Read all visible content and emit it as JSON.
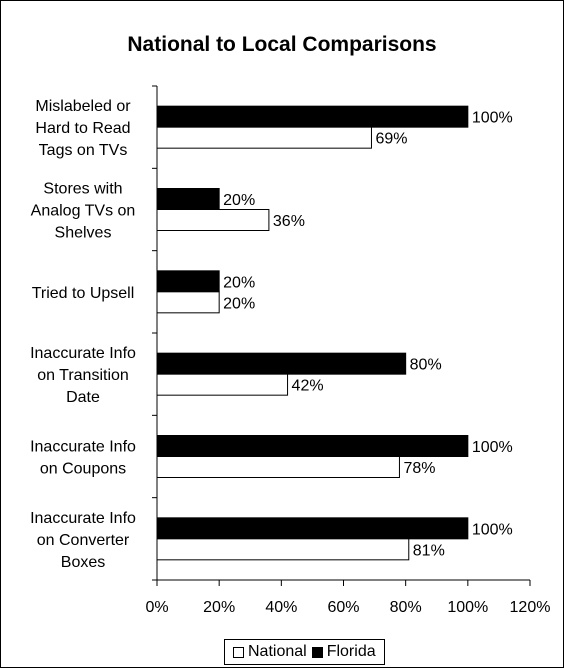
{
  "chart_data": {
    "type": "bar",
    "orientation": "horizontal",
    "title": "National to Local Comparisons",
    "xlabel": "",
    "ylabel": "",
    "categories": [
      [
        "Mislabeled or",
        "Hard to Read",
        "Tags on TVs"
      ],
      [
        "Stores with",
        "Analog TVs on",
        "Shelves"
      ],
      [
        "Tried to Upsell"
      ],
      [
        "Inaccurate Info",
        "on Transition",
        "Date"
      ],
      [
        "Inaccurate Info",
        "on Coupons"
      ],
      [
        "Inaccurate Info",
        "on Converter",
        "Boxes"
      ]
    ],
    "series": [
      {
        "name": "Florida",
        "color": "#000000",
        "values": [
          100,
          20,
          20,
          80,
          100,
          100
        ],
        "data_labels": [
          "100%",
          "20%",
          "20%",
          "80%",
          "100%",
          "100%"
        ]
      },
      {
        "name": "National",
        "color": "#ffffff",
        "values": [
          69,
          36,
          20,
          42,
          78,
          81
        ],
        "data_labels": [
          "69%",
          "36%",
          "20%",
          "42%",
          "78%",
          "81%"
        ]
      }
    ],
    "xlim": [
      0,
      120
    ],
    "x_ticks": [
      0,
      20,
      40,
      60,
      80,
      100,
      120
    ],
    "x_tick_labels": [
      "0%",
      "20%",
      "40%",
      "60%",
      "80%",
      "100%",
      "120%"
    ],
    "grid": false,
    "legend": {
      "position": "bottom",
      "entries": [
        "National",
        "Florida"
      ]
    }
  }
}
